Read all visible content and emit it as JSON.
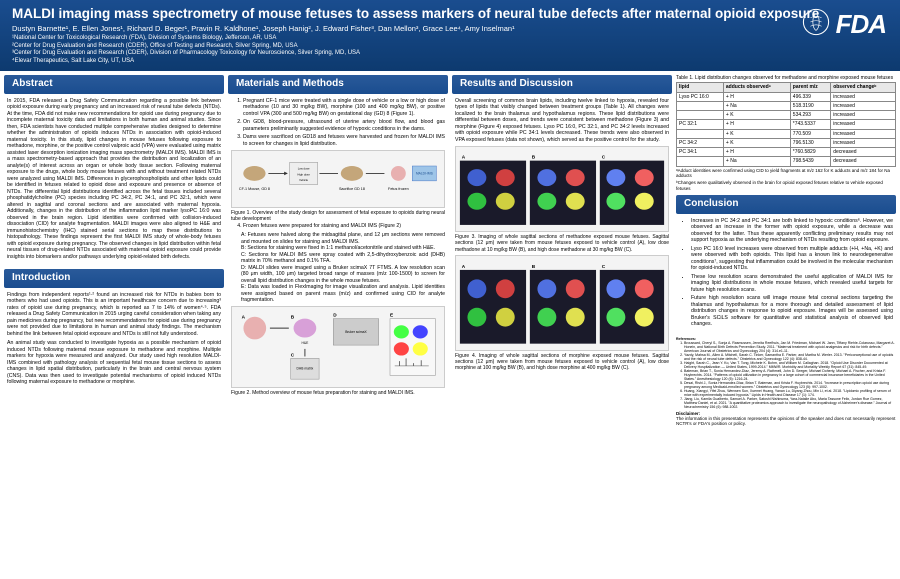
{
  "header": {
    "title": "MALDI imaging mass spectrometry of mouse fetuses to assess markers of neural tube defects after maternal opioid exposure",
    "authors": "Dustyn Barnette¹, E. Ellen Jones¹, Richard D. Beger¹, Pravin R. Kaldhone¹, Joseph Hanig², J. Edward Fisher³, Dan Mellon³, Grace Lee⁴, Amy Inselman¹",
    "affil1": "¹National Center for Toxicological Research (FDA), Division of Systems Biology, Jefferson, AR, USA",
    "affil2": "²Center for Drug Evaluation and Research (CDER), Office of Testing and Research, Silver Spring, MD, USA",
    "affil3": "³Center for Drug Evaluation and Research (CDER), Division of Pharmacology Toxicology for Neuroscience, Silver Spring, MD, USA",
    "affil4": "⁴Elevar Therapeutics, Salt Lake City, UT, USA",
    "fda": "FDA"
  },
  "abstract": {
    "title": "Abstract",
    "text": "In 2015, FDA released a Drug Safety Communication regarding a possible link between opioid exposure during early pregnancy and an increased risk of neural tube defects (NTDs). At the time, FDA did not make new recommendations for opioid use during pregnancy due to incomplete maternal toxicity data and limitations in both human and animal studies. Since then, FDA scientists have conducted multiple comprehensive studies designed to determine whether the administration of opioids induces NTDs in association with opioid-induced maternal toxicity. In this study, lipid changes in mouse fetuses following exposure to methadone, morphine, or the positive control valproic acid (VPA) were evaluated using matrix assisted laser desorption ionization imaging mass spectrometry (MALDI IMS). MALDI IMS is a mass spectrometry-based approach that provides the distribution and localization of an analyte(s) of interest across an organ or whole body tissue section. Following maternal exposure to the drugs, whole body mouse fetuses with and without treatment related NTDs were analyzed using MALDI IMS. Differences in glycerophospholipids and other lipids could be identified in fetuses related to opioid dose and exposure and presence or absence of NTDs. The differential lipid distributions identified across the fetal tissues included several phosphatidylcholine (PC) species including PC 34:2, PC 34:1, and PC 32:1, which were altered in sagittal and coronal sections and are associated with maternal hypoxia. Additionally, changes in the distribution of the inflammation lipid marker lysoPC 16:0 was observed in the brain region. Lipid identities were confirmed with collision-induced dissociation (CID) for analyte fragmentation. MALDI images were also aligned to H&E and immunohistochemistry (IHC) stained serial sections to map these distributions to histopathology. These findings represent the first MALDI IMS study of whole-body fetuses with opioid exposure during pregnancy. The observed changes in lipid distribution within fetal neural tissues of drug-related NTDs associated with maternal opioid exposure could provide insights into biomarkers and/or pathways underlying opioid-related birth defects."
  },
  "intro": {
    "title": "Introduction",
    "p1": "Findings from independent reports¹·² found an increased risk for NTDs in babies born to mothers who had used opioids. This is an important healthcare concern due to increasing³ rates of opioid use during pregnancy, which is reported as 7 to 14% of women⁴·⁵. FDA released a Drug Safety Communication in 2015 urging careful consideration when taking any pain medicines during pregnancy, but new recommendations for opioid use during pregnancy were not provided due to limitations in human and animal study findings. The mechanism behind the link between fetal opioid exposure and NTDs is still not fully understood.",
    "p2": "An animal study was conducted to investigate hypoxia as a possible mechanism of opioid induced NTDs following maternal mouse exposure to methadone and morphine. Multiple markers for hypoxia were measured and analyzed. Our study used high resolution MALDI-IMS combined with pathology analysis of sequential fetal mouse tissue sections to assess changes in lipid spatial distribution, particularly in the brain and central nervous system (CNS). Data was then used to investigate potential mechanisms of opioid induced NTDs following maternal exposure to methadone or morphine."
  },
  "methods": {
    "title": "Materials and Methods",
    "li1": "Pregnant CF-1 mice were treated with a single dose of vehicle or a low or high dose of methadone (10 and 30 mg/kg BW), morphine (100 and 400 mg/kg BW), or positive control VPA (300 and 500 mg/kg BW) on gestational day (GD) 8 (Figure 1).",
    "li2": "On GD8, blood-pressure, ultrasound of uterine artery blood flow, and blood gas parameters preliminarily suggested evidence of hypoxic conditions in the dams.",
    "li3": "Dams were sacrificed on GD18 and fetuses were harvested and frozen for MALDI IMS to screen for changes in lipid distribution.",
    "fig1cap": "Figure 1. Overview of the study design for assessment of fetal exposure to opioids during neural tube development",
    "li4": "Frozen fetuses were prepared for staining and MALDI IMS (Figure 2)",
    "li4a": "A: Fetuses were halved along the midsagittal plane, and 12 μm sections were removed and mounted on slides for staining and MALDI IMS.",
    "li4b": "B: Sections for staining were fixed in 1:1 methanol/acetonitrile and stained with H&E.",
    "li4c": "C: Sections for MALDI IMS were spray coated with 2,5-dihydroxybenzoic acid (DHB) matrix in 70% methanol and 0.1% TFA.",
    "li4d": "D: MALDI slides were imaged using a Bruker scimaX 7T FTMS. A low resolution scan (80 μm width, 100 μm) targeted broad range of masses (m/z 100-1500) to screen for overall lipid distribution changes in the whole mouse fetuses.",
    "li4e": "E: Data was loaded in FlexImaging for image visualization and analysis. Lipid identities were assigned based on parent mass (m/z) and confirmed using CID for analyte fragmentation.",
    "fig2cap": "Figure 2. Method overview of mouse fetus preparation for staining and MALDI IMS."
  },
  "results": {
    "title": "Results and Discussion",
    "p1": "Overall screening of common brain lipids, including twelve linked to hypoxia, revealed four types of lipids that visibly changed between treatment groups (Table 1). All changes were localized to the brain thalamus and hypothalamus regions. These lipid distributions were differential between doses, and trends were consistent between methadone (Figure 3) and morphine (Figure 4) exposed fetuses. Lyso PC 16:0, PC 32:1, and PC 34:2 levels increased with opioid exposure while PC 34:1 levels decreased. These trends were also observed in VPA exposed fetuses (data not shown), which served as the positive control for the study.",
    "fig3cap": "Figure 3. Imaging of whole sagittal sections of methadone exposed mouse fetuses. Sagittal sections (12 μm) were taken from mouse fetuses exposed to vehicle control (A), low dose methadone at 10 mg/kg BW (B), and high dose methadone at 30 mg/kg BW (C).",
    "fig4cap": "Figure 4. Imaging of whole sagittal sections of morphine exposed mouse fetuses. Sagittal sections (12 μm) were taken from mouse fetuses exposed to vehicle control (A), low dose morphine at 100 mg/kg BW (B), and high dose morphine at 400 mg/kg BW (C)."
  },
  "table": {
    "caption": "Table 1. Lipid distribution changes observed for methadone and morphine exposed mouse fetuses",
    "headers": [
      "lipid",
      "adducts observedᵃ",
      "parent m/z",
      "observed changeᵇ"
    ],
    "rows": [
      [
        "Lyso PC 16:0",
        "+ H",
        "496.339",
        "increased"
      ],
      [
        "",
        "+ Na",
        "518.3190",
        "increased"
      ],
      [
        "",
        "+ K",
        "534.293",
        "increased"
      ],
      [
        "PC 32:1",
        "+ H",
        "*743.5337",
        "increased"
      ],
      [
        "",
        "+ K",
        "770.509",
        "increased"
      ],
      [
        "PC 34:2",
        "+ K",
        "796.5130",
        "increased"
      ],
      [
        "PC 34:1",
        "+ H",
        "*760.5829",
        "decreased"
      ],
      [
        "",
        "+ Na",
        "798.5439",
        "decreased"
      ]
    ],
    "note1": "ᵃAdduct identities were confirmed using CID to yield fragments at m/z 162 for K adducts and m/z 184 for Na adducts",
    "note2": "ᵇChanges were qualitatively observed in the brain for opioid exposed fetuses relative to vehicle exposed fetuses"
  },
  "concl": {
    "title": "Conclusion",
    "li1": "Increases in PC 34:2 and PC 34:1 are both linked to hypoxic conditions⁶. However, we observed an increase in the former with opioid exposure, while a decrease was observed for the latter. Thus these apparently conflicting preliminary results may not support hypoxia as the underlying mechanism of NTDs resulting from opioid exposure.",
    "li2": "Lyso PC 16:0 level increases were observed from multiple adducts (+H, +Na, +K) and were observed with both opioids. This lipid has a known link to neurodegenerative conditions⁷, suggesting that inflammation could be involved in the molecular mechanism for opioid-induced NTDs.",
    "li3": "These low resolution scans demonstrated the useful application of MALDI IMS for imaging lipid distributions in whole mouse fetuses, which revealed useful targets for future high resolution scans.",
    "li4": "Future high resolution scans will image mouse fetal coronal sections targeting the thalamus and hypothalamus for a more thorough and detailed assessment of lipid distribution changes in response to opioid exposure. Images will be assessed using Bruker's SCiLS software for quantitative and statistical analysis of observed lipid changes."
  },
  "refs": {
    "title": "References:",
    "r1": "Broussard, Cheryl S., Sonja A. Rasmussen, Jennita Reefhuis, Jan M. Friedman, Michael W. Jann, Tiffany Riehle-Colarusso, Margaret A. Honein, and National Birth Defects Prevention Study. 2011. \"Maternal treatment with opioid analgesics and risk for birth defects.\" American Journal of Obstetrics and Gynecology 204 (4): 314.e1-11.",
    "r2": "Yazdy, Mahsa M., Allen A. Mitchell, Sarah C. Tinker, Samantha E. Parker, and Martha M. Werler. 2013. \"Periconceptional use of opioids and the risk of neural tube defects.\" Obstetrics and Gynecology 122 (4): 838-44.",
    "r3": "Haight, Sarah C., Jean Y. Ko, Van T. Tong, Michele K. Bohm, and William M. Callaghan. 2018. \"Opioid Use Disorder Documented at Delivery Hospitalization — United States, 1999-2014.\" MMWR. Morbidity and Mortality Weekly Report 67 (31): 845-49.",
    "r4": "Bateman, Brian T., Sonia Hernandez-Diaz, Jeremy A. Rathmell, John D. Seeger, Michael Doherty, Michael A. Fischer, and Krista F. Huybrechts. 2014. \"Patterns of opioid utilization in pregnancy in a large cohort of commercial insurance beneficiaries in the United States.\" Anesthesiology 120 (5): 1216-24.",
    "r5": "Desai, Rishi J., Sonia Hernandez-Diaz, Brian T. Bateman, and Krista F. Huybrechts. 2014. \"Increase in prescription opioid use during pregnancy among Medicaid-enrolled women.\" Obstetrics and Gynecology 123 (5): 997-1002.",
    "r6": "Huang, Xiangyi, Yifei Zhou, Wenwen Sun, Xuemei Huang, Yanan Lu, Diyang Zhou, Min Li, et al. 2018. \"Lipidomic profiling of serum of mice with experimentally induced hypoxia.\" Lipids in Health and Disease 17 (1): 174.",
    "r7": "Jiang, Liu, Kamila Gualberto, Samuel A. Parker, Satoshi Nishinuma, Yara-Natalie Abo, Maria Tassone Felix, Jordan Rue Gomez, Matthew Daniel, et al. 2021. \"A quantitative proteomics approach to investigate the neuropathology of Alzheimer's disease.\" Journal of Neurochemistry 156 (6): 988-1002."
  },
  "disclaimer": {
    "title": "Disclaimer:",
    "text": "The information in this presentation represents the opinions of the speaker and does not necessarily represent NCTR's or FDA's position or policy."
  },
  "colors": {
    "header_bg1": "#1a4d8f",
    "header_bg2": "#0d3a6f",
    "section_bg1": "#2a5a9a",
    "section_bg2": "#1a4d8f",
    "text": "#000000",
    "fig_bg": "#f4f4f4"
  }
}
